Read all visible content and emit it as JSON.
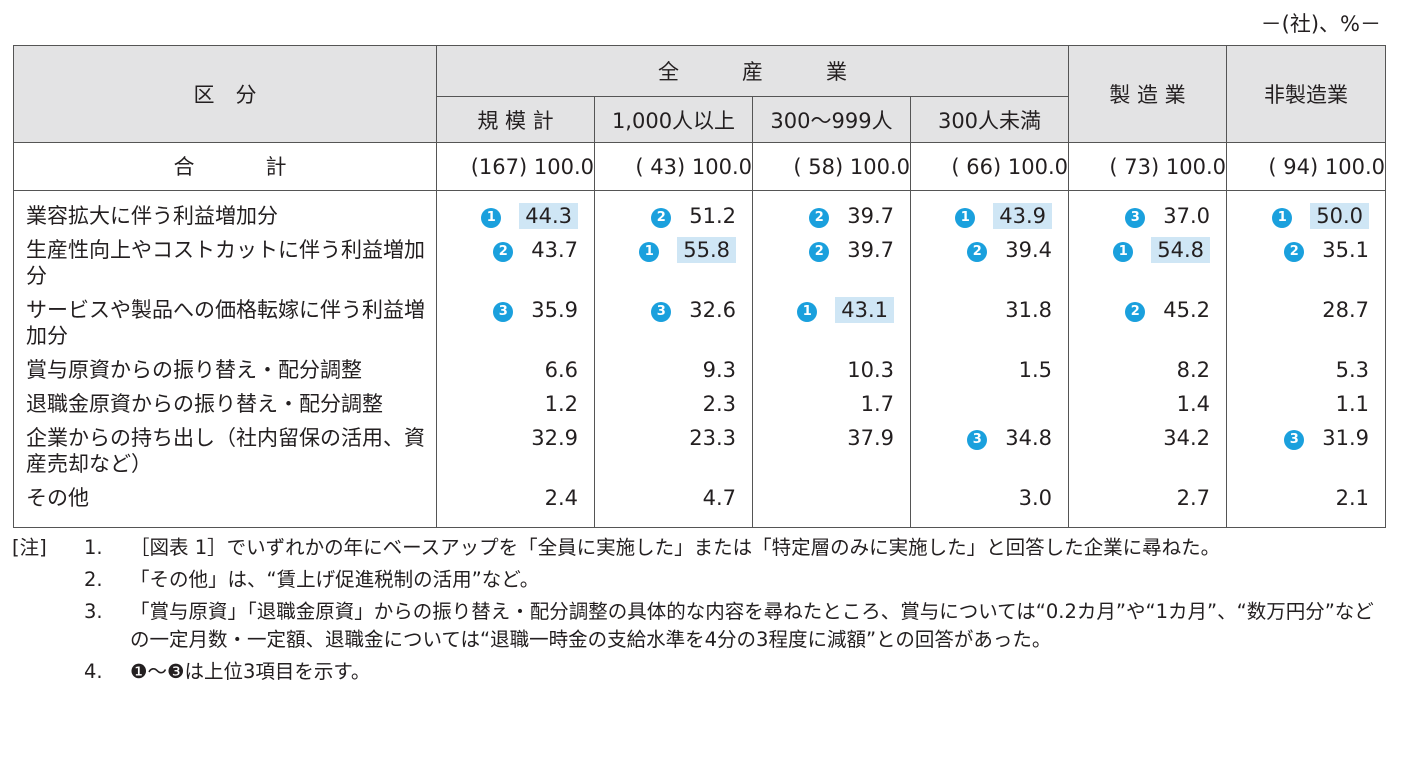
{
  "unit_label": "－(社)、%－",
  "header": {
    "kubun": "区　分",
    "all_industries": "全　　　産　　　業",
    "manufacturing": "製 造 業",
    "non_manufacturing": "非製造業",
    "sub": [
      "規 模 計",
      "1,000人以上",
      "300～999人",
      "300人未満"
    ]
  },
  "total": {
    "label": "合　　　計",
    "cells": [
      "(167) 100.0",
      "( 43) 100.0",
      "( 58) 100.0",
      "( 66) 100.0",
      "( 73) 100.0",
      "( 94) 100.0"
    ]
  },
  "rows": [
    {
      "label": "業容拡大に伴う利益増加分",
      "cells": [
        {
          "rank": "1",
          "value": "44.3",
          "hl": true
        },
        {
          "rank": "2",
          "value": "51.2"
        },
        {
          "rank": "2",
          "value": "39.7"
        },
        {
          "rank": "1",
          "value": "43.9",
          "hl": true
        },
        {
          "rank": "3",
          "value": "37.0"
        },
        {
          "rank": "1",
          "value": "50.0",
          "hl": true
        }
      ]
    },
    {
      "label": "生産性向上やコストカットに伴う利益増加分",
      "cells": [
        {
          "rank": "2",
          "value": "43.7"
        },
        {
          "rank": "1",
          "value": "55.8",
          "hl": true
        },
        {
          "rank": "2",
          "value": "39.7"
        },
        {
          "rank": "2",
          "value": "39.4"
        },
        {
          "rank": "1",
          "value": "54.8",
          "hl": true
        },
        {
          "rank": "2",
          "value": "35.1"
        }
      ]
    },
    {
      "label": "サービスや製品への価格転嫁に伴う利益増加分",
      "cells": [
        {
          "rank": "3",
          "value": "35.9"
        },
        {
          "rank": "3",
          "value": "32.6"
        },
        {
          "rank": "1",
          "value": "43.1",
          "hl": true
        },
        {
          "value": "31.8"
        },
        {
          "rank": "2",
          "value": "45.2"
        },
        {
          "value": "28.7"
        }
      ]
    },
    {
      "label": "賞与原資からの振り替え・配分調整",
      "cells": [
        {
          "value": "6.6"
        },
        {
          "value": "9.3"
        },
        {
          "value": "10.3"
        },
        {
          "value": "1.5"
        },
        {
          "value": "8.2"
        },
        {
          "value": "5.3"
        }
      ]
    },
    {
      "label": "退職金原資からの振り替え・配分調整",
      "cells": [
        {
          "value": "1.2"
        },
        {
          "value": "2.3"
        },
        {
          "value": "1.7"
        },
        {
          "value": ""
        },
        {
          "value": "1.4"
        },
        {
          "value": "1.1"
        }
      ]
    },
    {
      "label": "企業からの持ち出し（社内留保の活用、資産売却など）",
      "cells": [
        {
          "value": "32.9"
        },
        {
          "value": "23.3"
        },
        {
          "value": "37.9"
        },
        {
          "rank": "3",
          "value": "34.8"
        },
        {
          "value": "34.2"
        },
        {
          "rank": "3",
          "value": "31.9"
        }
      ]
    },
    {
      "label": "その他",
      "cells": [
        {
          "value": "2.4"
        },
        {
          "value": "4.7"
        },
        {
          "value": ""
        },
        {
          "value": "3.0"
        },
        {
          "value": "2.7"
        },
        {
          "value": "2.1"
        }
      ]
    }
  ],
  "notes": {
    "tag": "[注]",
    "items": [
      {
        "num": "1.",
        "text": "［図表 1］でいずれかの年にベースアップを「全員に実施した」または「特定層のみに実施した」と回答した企業に尋ねた。"
      },
      {
        "num": "2.",
        "text": "「その他」は、“賃上げ促進税制の活用”など。"
      },
      {
        "num": "3.",
        "text": "「賞与原資」「退職金原資」からの振り替え・配分調整の具体的な内容を尋ねたところ、賞与については“0.2カ月”や“1カ月”、“数万円分”などの一定月数・一定額、退職金については“退職一時金の支給水準を4分の3程度に減額”との回答があった。"
      },
      {
        "num": "4.",
        "text": "❶～❸は上位3項目を示す。"
      }
    ]
  },
  "colors": {
    "header_bg": "#e3e3e4",
    "rank_badge": "#1aa0dd",
    "highlight": "#cfe6f5"
  }
}
